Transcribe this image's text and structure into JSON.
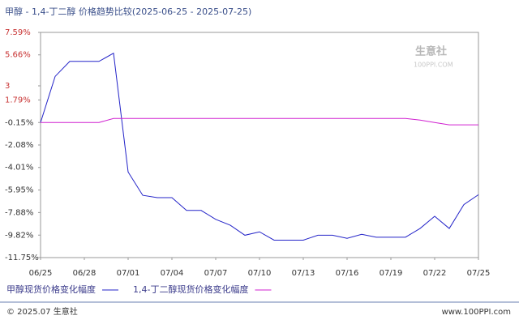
{
  "chart_data": {
    "type": "line",
    "title": "甲醇 - 1,4-丁二醇 价格趋势比较(2025-06-25 - 2025-07-25)",
    "watermark": "生意社",
    "watermark_sub": "100PPI.COM",
    "footer_left": "© 2025.07 生意社",
    "footer_right": "www.100PPI.com",
    "categories": [
      "06/25",
      null,
      null,
      "06/28",
      null,
      null,
      "07/01",
      null,
      null,
      "07/04",
      null,
      null,
      "07/07",
      null,
      null,
      "07/10",
      null,
      null,
      "07/13",
      null,
      null,
      "07/16",
      null,
      null,
      "07/19",
      null,
      null,
      "07/22",
      null,
      null,
      "07/25"
    ],
    "series": [
      {
        "name": "甲醇现货价格变化幅度",
        "color": "#2323c8",
        "values": [
          -0.15,
          3.81,
          5.1,
          5.1,
          5.1,
          5.8,
          -4.4,
          -6.4,
          -6.6,
          -6.6,
          -7.7,
          -7.7,
          -8.47,
          -8.97,
          -9.83,
          -9.54,
          -10.25,
          -10.25,
          -10.25,
          -9.83,
          -9.83,
          -10.1,
          -9.75,
          -10.0,
          -10.0,
          -10.0,
          -9.25,
          -8.2,
          -9.25,
          -7.2,
          -6.35
        ]
      },
      {
        "name": "1,4-丁二醇现货价格变化幅度",
        "color": "#d020d0",
        "values": [
          -0.15,
          -0.15,
          -0.15,
          -0.15,
          -0.15,
          0.2,
          0.2,
          0.2,
          0.2,
          0.2,
          0.2,
          0.2,
          0.2,
          0.2,
          0.2,
          0.2,
          0.2,
          0.2,
          0.2,
          0.2,
          0.2,
          0.2,
          0.2,
          0.2,
          0.2,
          0.2,
          0.06,
          -0.15,
          -0.35,
          -0.35,
          -0.35
        ]
      }
    ],
    "ylim": [
      -11.75,
      7.59
    ],
    "yticks": [
      {
        "value": 7.59,
        "label": "7.59%"
      },
      {
        "value": 5.66,
        "label": "5.66%"
      },
      3,
      {
        "value": 1.79,
        "label": "1.79%"
      },
      {
        "value": -0.15,
        "label": "-0.15%"
      },
      {
        "value": -2.08,
        "label": "-2.08%"
      },
      {
        "value": -4.01,
        "label": "-4.01%"
      },
      {
        "value": -5.95,
        "label": "-5.95%"
      },
      {
        "value": -7.88,
        "label": "-7.88%"
      },
      {
        "value": -9.82,
        "label": "-9.82%"
      },
      {
        "value": -11.75,
        "label": "-11.75%"
      }
    ],
    "grid": false
  }
}
